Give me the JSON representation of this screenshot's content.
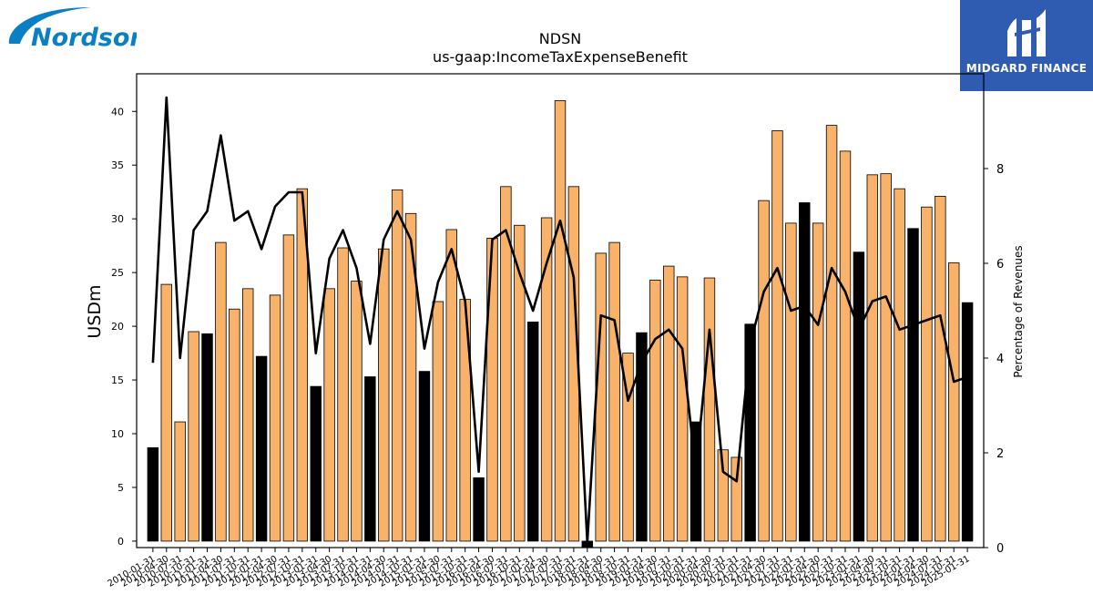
{
  "header": {
    "company_logo_text": "Nordson",
    "brand_text": "MIDGARD FINANCE"
  },
  "colors": {
    "bar_default": "#f9b26a",
    "bar_highlight": "#000000",
    "line": "#000000",
    "logo_blue": "#0a7fc3",
    "brand_bg": "#2f5bb0"
  },
  "chart_data": {
    "type": "bar",
    "title": "NDSN",
    "subtitle": "us-gaap:IncomeTaxExpenseBenefit",
    "ylabel": "USDm",
    "y2label": "Percentage of Revenues",
    "ylim": [
      -0.6,
      43.5
    ],
    "y2lim": [
      0,
      10
    ],
    "yticks": [
      0,
      5,
      10,
      15,
      20,
      25,
      30,
      35,
      40
    ],
    "y2ticks": [
      0,
      2,
      4,
      6,
      8
    ],
    "grid": false,
    "categories": [
      "2010-01-31",
      "2010-04-30",
      "2010-07-31",
      "2010-10-31",
      "2011-01-31",
      "2011-04-30",
      "2011-07-31",
      "2011-10-31",
      "2012-01-31",
      "2012-04-30",
      "2012-07-31",
      "2012-10-31",
      "2013-01-31",
      "2013-04-30",
      "2013-07-31",
      "2013-10-31",
      "2014-01-31",
      "2014-04-30",
      "2014-07-31",
      "2014-10-31",
      "2015-01-31",
      "2015-04-30",
      "2015-07-31",
      "2015-10-31",
      "2016-01-31",
      "2016-04-30",
      "2016-07-31",
      "2016-10-31",
      "2017-01-31",
      "2017-04-30",
      "2017-07-31",
      "2017-10-31",
      "2018-01-31",
      "2018-04-30",
      "2018-07-31",
      "2018-10-31",
      "2019-01-31",
      "2019-04-30",
      "2019-07-31",
      "2019-10-31",
      "2020-01-31",
      "2020-04-30",
      "2020-07-31",
      "2020-10-31",
      "2021-01-31",
      "2021-04-30",
      "2021-07-31",
      "2021-10-31",
      "2022-01-31",
      "2022-04-30",
      "2022-07-31",
      "2022-10-31",
      "2023-01-31",
      "2023-04-30",
      "2023-07-31",
      "2023-10-31",
      "2024-01-31",
      "2024-04-30",
      "2024-07-31",
      "2024-10-31",
      "2025-01-31"
    ],
    "xtick_labels": [
      "2010-01-31",
      "2010-04-30",
      "2010-07-31",
      "2010-10-31",
      "2011-01-31",
      "2011-04-30",
      "2011-07-31",
      "2011-10-31",
      "2012-01-31",
      "2012-04-30",
      "2012-07-31",
      "2012-10-31",
      "2013-01-31",
      "2013-04-30",
      "2013-07-31",
      "2013-10-31",
      "2014-01-31",
      "2014-04-30",
      "2014-07-31",
      "2014-10-31",
      "2015-01-31",
      "2015-04-30",
      "2015-07-31",
      "2015-10-31",
      "2016-01-31",
      "2016-04-30",
      "2016-07-31",
      "2016-10-31",
      "2017-01-31",
      "2017-04-30",
      "2017-07-31",
      "2017-10-31",
      "2018-01-31",
      "2018-04-30",
      "2018-07-31",
      "2018-10-31",
      "2019-01-31",
      "2019-04-30",
      "2019-07-31",
      "2019-10-31",
      "2020-01-31",
      "2020-04-30",
      "2020-07-31",
      "2020-10-31",
      "2021-01-31",
      "2021-04-30",
      "2021-07-31",
      "2021-10-31",
      "2022-01-31",
      "2022-04-30",
      "2022-07-31",
      "2022-10-31",
      "2023-01-31",
      "2023-04-30",
      "2023-07-31",
      "2023-10-31",
      "2024-01-31",
      "2024-04-30",
      "2024-07-31",
      "2024-10-31",
      "2025-01-31"
    ],
    "series": [
      {
        "axis": "left",
        "kind": "bar",
        "values": [
          8.7,
          23.9,
          11.1,
          19.5,
          19.3,
          27.8,
          21.6,
          23.5,
          17.2,
          22.9,
          28.5,
          32.8,
          14.4,
          23.5,
          27.3,
          24.2,
          15.3,
          27.2,
          32.7,
          30.5,
          15.8,
          22.3,
          29.0,
          22.5,
          5.9,
          28.2,
          33.0,
          29.4,
          20.4,
          30.1,
          41.0,
          33.0,
          -0.6,
          26.8,
          27.8,
          17.5,
          19.4,
          24.3,
          25.6,
          24.6,
          11.1,
          24.5,
          8.5,
          7.8,
          20.2,
          31.7,
          38.2,
          29.6,
          31.5,
          29.6,
          38.7,
          36.3,
          26.9,
          34.1,
          34.2,
          32.8,
          29.1,
          31.1,
          32.1,
          25.9,
          22.2
        ],
        "highlight": [
          true,
          false,
          false,
          false,
          true,
          false,
          false,
          false,
          true,
          false,
          false,
          false,
          true,
          false,
          false,
          false,
          true,
          false,
          false,
          false,
          true,
          false,
          false,
          false,
          true,
          false,
          false,
          false,
          true,
          false,
          false,
          false,
          true,
          false,
          false,
          false,
          true,
          false,
          false,
          false,
          true,
          false,
          false,
          false,
          true,
          false,
          false,
          false,
          true,
          false,
          false,
          false,
          true,
          false,
          false,
          false,
          true,
          false,
          false,
          false,
          true
        ]
      },
      {
        "axis": "right",
        "kind": "line",
        "values": [
          3.9,
          9.5,
          4.0,
          6.7,
          7.1,
          8.7,
          6.9,
          7.1,
          6.3,
          7.2,
          7.5,
          7.5,
          4.1,
          6.1,
          6.7,
          5.9,
          4.3,
          6.5,
          7.1,
          6.5,
          4.2,
          5.6,
          6.3,
          5.2,
          1.6,
          6.5,
          6.7,
          5.8,
          5.0,
          6.0,
          6.9,
          5.7,
          0.1,
          4.9,
          4.8,
          3.1,
          3.9,
          4.4,
          4.6,
          4.2,
          1.6,
          4.6,
          1.6,
          1.4,
          4.3,
          5.4,
          5.9,
          5.0,
          5.1,
          4.7,
          5.9,
          5.4,
          4.6,
          5.2,
          5.3,
          4.6,
          4.7,
          4.8,
          4.9,
          3.5,
          3.6
        ]
      }
    ]
  }
}
